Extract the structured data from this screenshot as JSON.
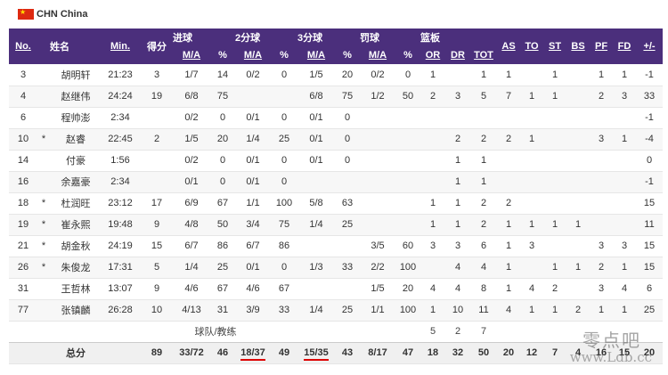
{
  "team": {
    "name": "CHN China",
    "flag": "china-flag",
    "flag_color": "#de2910"
  },
  "header": {
    "groups": [
      "进球",
      "2分球",
      "3分球",
      "罚球",
      "篮板"
    ],
    "cols": [
      "No.",
      "姓名",
      "Min.",
      "得分",
      "M/A",
      "%",
      "M/A",
      "%",
      "M/A",
      "%",
      "M/A",
      "%",
      "OR",
      "DR",
      "TOT",
      "AS",
      "TO",
      "ST",
      "BS",
      "PF",
      "FD",
      "+/-"
    ]
  },
  "players": [
    [
      "3",
      "",
      "胡明轩",
      "21:23",
      "3",
      "1/7",
      "14",
      "0/2",
      "0",
      "1/5",
      "20",
      "0/2",
      "0",
      "1",
      "",
      "1",
      "1",
      "",
      "1",
      "",
      "1",
      "1",
      "-1"
    ],
    [
      "4",
      "",
      "赵继伟",
      "24:24",
      "19",
      "6/8",
      "75",
      "",
      "",
      "6/8",
      "75",
      "1/2",
      "50",
      "2",
      "3",
      "5",
      "7",
      "1",
      "1",
      "",
      "2",
      "3",
      "33"
    ],
    [
      "6",
      "",
      "程帅澎",
      "2:34",
      "",
      "0/2",
      "0",
      "0/1",
      "0",
      "0/1",
      "0",
      "",
      "",
      "",
      "",
      "",
      "",
      "",
      "",
      "",
      "",
      "",
      "-1"
    ],
    [
      "10",
      "*",
      "赵睿",
      "22:45",
      "2",
      "1/5",
      "20",
      "1/4",
      "25",
      "0/1",
      "0",
      "",
      "",
      "",
      "2",
      "2",
      "2",
      "1",
      "",
      "",
      "3",
      "1",
      "-4"
    ],
    [
      "14",
      "",
      "付豪",
      "1:56",
      "",
      "0/2",
      "0",
      "0/1",
      "0",
      "0/1",
      "0",
      "",
      "",
      "",
      "1",
      "1",
      "",
      "",
      "",
      "",
      "",
      "",
      "0"
    ],
    [
      "16",
      "",
      "余嘉豪",
      "2:34",
      "",
      "0/1",
      "0",
      "0/1",
      "0",
      "",
      "",
      "",
      "",
      "",
      "1",
      "1",
      "",
      "",
      "",
      "",
      "",
      "",
      "-1"
    ],
    [
      "18",
      "*",
      "杜润旺",
      "23:12",
      "17",
      "6/9",
      "67",
      "1/1",
      "100",
      "5/8",
      "63",
      "",
      "",
      "1",
      "1",
      "2",
      "2",
      "",
      "",
      "",
      "",
      "",
      "15"
    ],
    [
      "19",
      "*",
      "崔永熙",
      "19:48",
      "9",
      "4/8",
      "50",
      "3/4",
      "75",
      "1/4",
      "25",
      "",
      "",
      "1",
      "1",
      "2",
      "1",
      "1",
      "1",
      "1",
      "",
      "",
      "11"
    ],
    [
      "21",
      "*",
      "胡金秋",
      "24:19",
      "15",
      "6/7",
      "86",
      "6/7",
      "86",
      "",
      "",
      "3/5",
      "60",
      "3",
      "3",
      "6",
      "1",
      "3",
      "",
      "",
      "3",
      "3",
      "15"
    ],
    [
      "26",
      "*",
      "朱俊龙",
      "17:31",
      "5",
      "1/4",
      "25",
      "0/1",
      "0",
      "1/3",
      "33",
      "2/2",
      "100",
      "",
      "4",
      "4",
      "1",
      "",
      "1",
      "1",
      "2",
      "1",
      "15"
    ],
    [
      "31",
      "",
      "王哲林",
      "13:07",
      "9",
      "4/6",
      "67",
      "4/6",
      "67",
      "",
      "",
      "1/5",
      "20",
      "4",
      "4",
      "8",
      "1",
      "4",
      "2",
      "",
      "3",
      "4",
      "6"
    ],
    [
      "77",
      "",
      "张镇麟",
      "26:28",
      "10",
      "4/13",
      "31",
      "3/9",
      "33",
      "1/4",
      "25",
      "1/1",
      "100",
      "1",
      "10",
      "11",
      "4",
      "1",
      "1",
      "2",
      "1",
      "1",
      "25"
    ]
  ],
  "team_row": {
    "label": "球队/教练",
    "or": "5",
    "dr": "2",
    "tot": "7"
  },
  "totals": {
    "label": "总分",
    "values": [
      "89",
      "33/72",
      "46",
      "18/37",
      "49",
      "15/35",
      "43",
      "8/17",
      "47",
      "18",
      "32",
      "50",
      "20",
      "12",
      "7",
      "4",
      "16",
      "15",
      "20"
    ]
  },
  "watermark": {
    "cn": "零点吧",
    "url": "www.Ldb.cc"
  }
}
